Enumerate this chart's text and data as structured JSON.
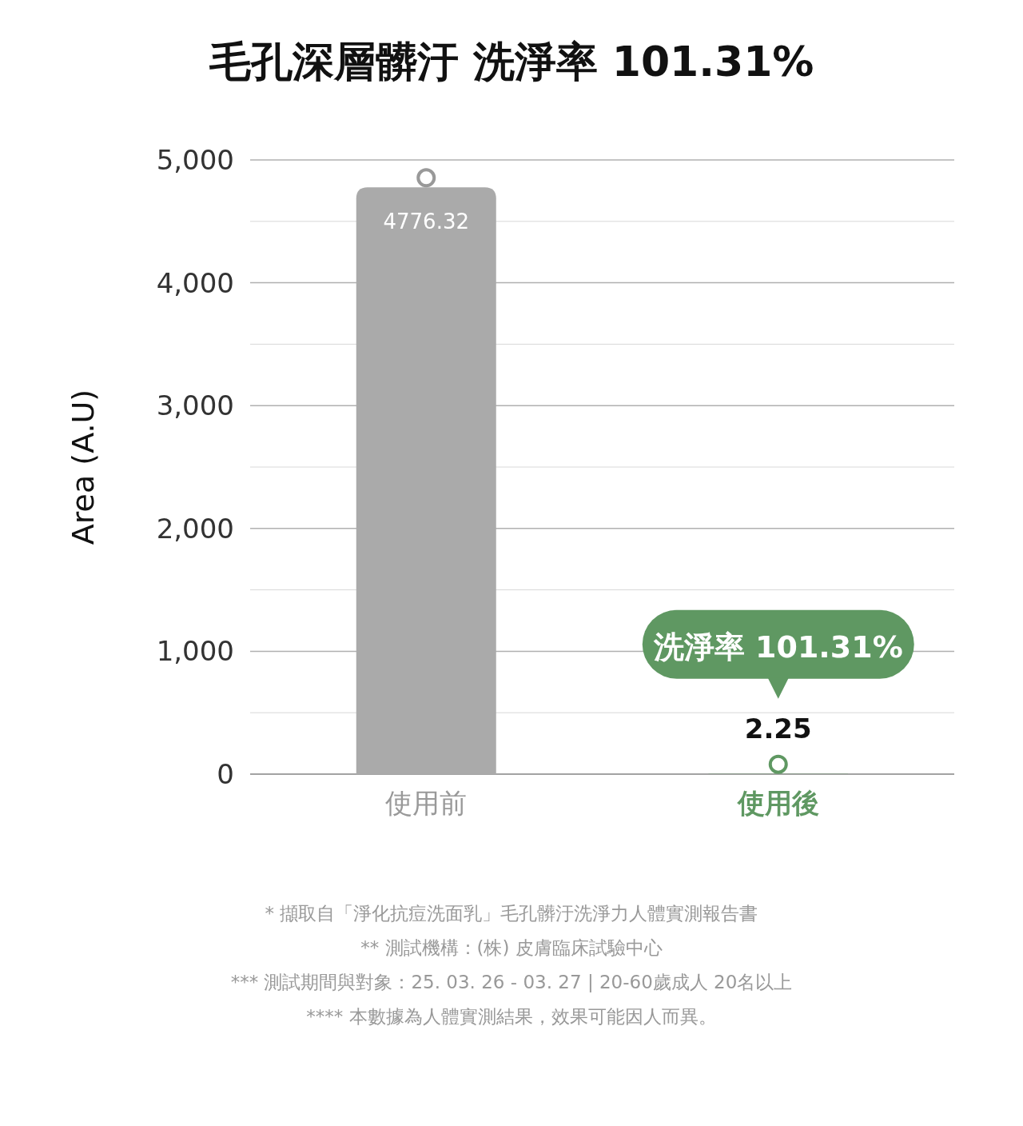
{
  "chart_data": {
    "type": "bar",
    "title": "毛孔深層髒汙 洗淨率 101.31%",
    "ylabel": "Area (A.U)",
    "categories": [
      "使用前",
      "使用後"
    ],
    "values": [
      4776.32,
      2.25
    ],
    "colors": [
      "#aaaaaa",
      "#5f9862"
    ],
    "data_labels": true,
    "marker": "circle",
    "ylim": [
      0,
      5000
    ],
    "yticks": [
      0,
      {
        "value": 500,
        "label": null
      },
      {
        "value": 1000,
        "label": "1,000"
      },
      {
        "value": 1500,
        "label": null
      },
      {
        "value": 2000,
        "label": "2,000"
      },
      {
        "value": 2500,
        "label": null
      },
      {
        "value": 3000,
        "label": "3,000"
      },
      {
        "value": 3500,
        "label": null
      },
      {
        "value": 4000,
        "label": "4,000"
      },
      {
        "value": 4500,
        "label": null
      },
      {
        "value": 5000,
        "label": "5,000"
      }
    ],
    "grid": "y",
    "annotations": [
      "洗淨率 101.31%",
      "* 擷取自「淨化抗痘洗面乳」毛孔髒汙洗淨力人體實測報告書",
      "** 測試機構：(株) 皮膚臨床試驗中心",
      "*** 測試期間與對象：25. 03. 26 - 03. 27 | 20-60歲成人 20名以上",
      "**** 本數據為人體實測結果，效果可能因人而異。"
    ]
  }
}
